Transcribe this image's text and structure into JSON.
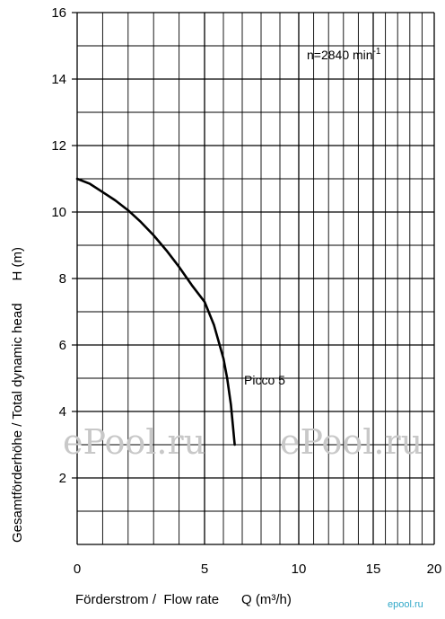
{
  "chart_data": {
    "type": "line",
    "title": "",
    "xlabel": "Förderstrom /  Flow rate      Q (m³/h)",
    "ylabel": "Gesamtförderhöhe / Total dynamic head      H (m)",
    "xlim": [
      0,
      20
    ],
    "ylim": [
      0,
      16
    ],
    "x_scale": "log-like (pump chart: equal spacing for 0→5 and 5→10 and 10→20 compressed)",
    "x_ticks": [
      "0",
      "5",
      "10",
      "15",
      "20"
    ],
    "x_tick_values": [
      0,
      5,
      10,
      15,
      20
    ],
    "y_ticks": [
      "2",
      "4",
      "6",
      "8",
      "10",
      "12",
      "14",
      "16"
    ],
    "y_tick_values": [
      2,
      4,
      6,
      8,
      10,
      12,
      14,
      16
    ],
    "grid": true,
    "annotation": {
      "text": "n=2840 min",
      "sup": "-1"
    },
    "series": [
      {
        "name": "Picco 5",
        "x": [
          0,
          0.5,
          1,
          1.5,
          2,
          2.5,
          3,
          3.5,
          4,
          4.5,
          5,
          5.5,
          6,
          6.2,
          6.4,
          6.5,
          6.6
        ],
        "y": [
          11,
          10.85,
          10.6,
          10.35,
          10.05,
          9.7,
          9.3,
          8.85,
          8.35,
          7.8,
          7.3,
          6.6,
          5.6,
          5.0,
          4.2,
          3.6,
          3.0
        ]
      }
    ]
  },
  "watermark": [
    "ePool.ru",
    "ePool.ru"
  ],
  "corner_mark": "epool.ru"
}
